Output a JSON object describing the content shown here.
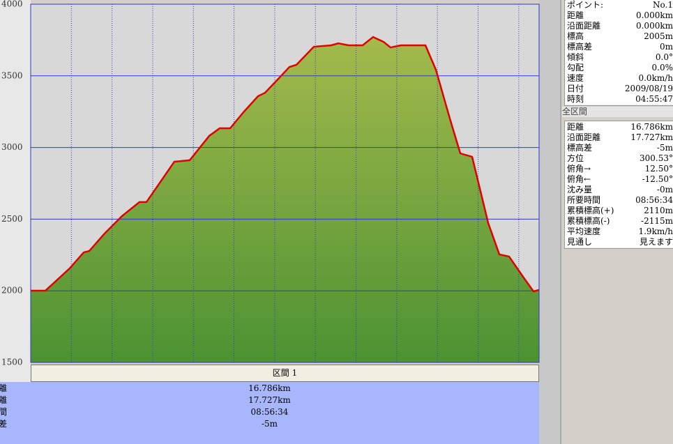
{
  "chart_data": {
    "type": "area",
    "ylim": [
      1500,
      4000
    ],
    "yticks": [
      1500,
      2000,
      2500,
      3000,
      3500,
      4000
    ],
    "xlim": [
      0,
      16.786
    ],
    "x": [
      0,
      0.484,
      0.714,
      1.289,
      1.75,
      1.934,
      2.441,
      3.016,
      3.592,
      3.822,
      4.743,
      5.25,
      5.895,
      6.24,
      6.586,
      7.046,
      7.506,
      7.737,
      8.197,
      8.543,
      8.773,
      9.349,
      9.924,
      10.155,
      10.5,
      10.961,
      11.306,
      11.651,
      11.881,
      12.227,
      13.033,
      13.378,
      13.839,
      14.184,
      14.575,
      15.105,
      15.473,
      15.796,
      16.256,
      16.601,
      16.786
    ],
    "values": [
      2001,
      2001,
      2045,
      2157,
      2268,
      2278,
      2400,
      2522,
      2619,
      2619,
      2901,
      2911,
      3081,
      3134,
      3134,
      3251,
      3358,
      3382,
      3484,
      3562,
      3577,
      3703,
      3713,
      3727,
      3713,
      3713,
      3771,
      3737,
      3698,
      3713,
      3713,
      3543,
      3202,
      2959,
      2935,
      2473,
      2254,
      2239,
      2098,
      1996,
      2006
    ],
    "color": "#e00000",
    "fill_top": "#a4ba4c",
    "fill_bottom": "#4c9232",
    "grid": true,
    "grid_color": "#2a3cc8"
  },
  "section_panel": {
    "title": "区間 1",
    "rows": [
      {
        "label": "距離",
        "value": "16.786km"
      },
      {
        "label": "沿面距離",
        "value": "17.727km"
      },
      {
        "label": "所要時間",
        "value": "08:56:34"
      },
      {
        "label": "標高差",
        "value": "-5m"
      }
    ]
  },
  "point_panel": {
    "rows": [
      {
        "label": "ポイント:",
        "value": "No.1"
      },
      {
        "label": "距離",
        "value": "0.000km"
      },
      {
        "label": "沿面距離",
        "value": "0.000km"
      },
      {
        "label": "標高",
        "value": "2005m"
      },
      {
        "label": "標高差",
        "value": "0m"
      },
      {
        "label": "傾斜",
        "value": "0.0°"
      },
      {
        "label": "勾配",
        "value": "0.0%"
      },
      {
        "label": "速度",
        "value": "0.0km/h"
      },
      {
        "label": "日付",
        "value": "2009/08/19"
      },
      {
        "label": "時刻",
        "value": "04:55:47"
      }
    ]
  },
  "total_panel": {
    "title": "全区間",
    "rows": [
      {
        "label": "距離",
        "value": "16.786km"
      },
      {
        "label": "沿面距離",
        "value": "17.727km"
      },
      {
        "label": "標高差",
        "value": "-5m"
      },
      {
        "label": "方位",
        "value": "300.53°"
      },
      {
        "label": "俯角→",
        "value": "12.50°"
      },
      {
        "label": "俯角←",
        "value": "-12.50°"
      },
      {
        "label": "沈み量",
        "value": "-0m"
      },
      {
        "label": "所要時間",
        "value": "08:56:34"
      },
      {
        "label": "累積標高(+)",
        "value": "2110m"
      },
      {
        "label": "累積標高(-)",
        "value": "-2115m"
      },
      {
        "label": "平均速度",
        "value": "1.9km/h"
      },
      {
        "label": "見通し",
        "value": "見えます"
      }
    ]
  }
}
